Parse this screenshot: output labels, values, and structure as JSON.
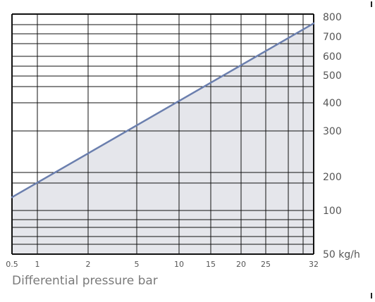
{
  "chart_data": {
    "type": "area",
    "title": "",
    "xlabel": "Differential pressure bar",
    "ylabel": "",
    "x_scale": "log",
    "y_scale": "custom",
    "xlim": [
      0.5,
      32
    ],
    "ylim": [
      50,
      800
    ],
    "x_ticks": [
      "0.5",
      "1",
      "2",
      "5",
      "10",
      "15",
      "20",
      "25",
      "32"
    ],
    "y_ticks": [
      "800",
      "700",
      "600",
      "500",
      "400",
      "300",
      "200",
      "100",
      "50 kg/h"
    ],
    "series": [
      {
        "values": [
          {
            "x": 0.5,
            "y": 140
          },
          {
            "x": 32,
            "y": 760
          }
        ]
      }
    ],
    "grid": true,
    "colors": {
      "line": "#6b7fae",
      "fill": "#e5e6eb",
      "grid": "#111111"
    }
  }
}
